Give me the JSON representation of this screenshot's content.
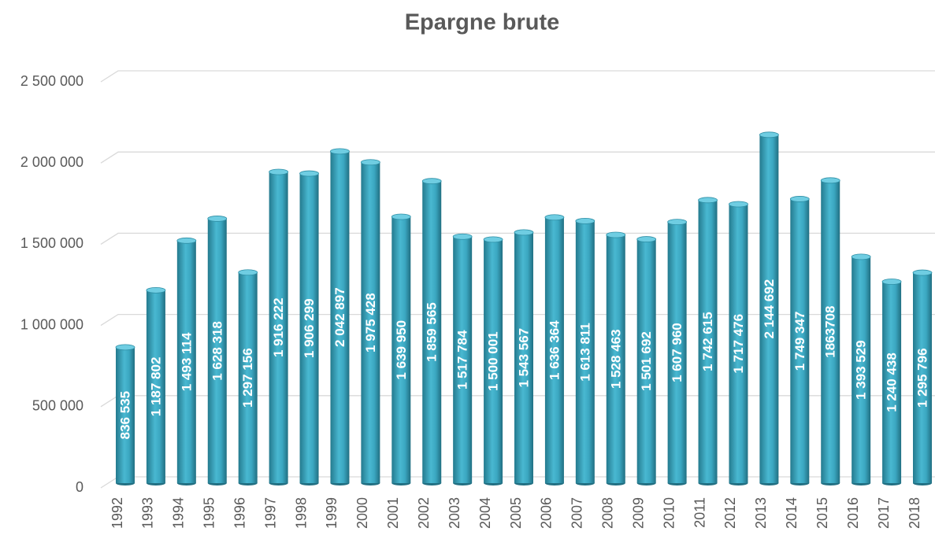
{
  "chart_data": {
    "type": "bar",
    "title": "Epargne brute",
    "categories": [
      "1992",
      "1993",
      "1994",
      "1995",
      "1996",
      "1997",
      "1998",
      "1999",
      "2000",
      "2001",
      "2002",
      "2003",
      "2004",
      "2005",
      "2006",
      "2007",
      "2008",
      "2009",
      "2010",
      "2011",
      "2012",
      "2013",
      "2014",
      "2015",
      "2016",
      "2017",
      "2018"
    ],
    "values": [
      836535,
      1187802,
      1493114,
      1628318,
      1297156,
      1916222,
      1906299,
      2042897,
      1975428,
      1639950,
      1859565,
      1517784,
      1500001,
      1543567,
      1636364,
      1613811,
      1528463,
      1501692,
      1607960,
      1742615,
      1717476,
      2144692,
      1749347,
      1863708,
      1393529,
      1240438,
      1295796
    ],
    "value_labels": [
      "836 535",
      "1 187 802",
      "1 493 114",
      "1 628 318",
      "1 297 156",
      "1 916 222",
      "1 906 299",
      "2 042 897",
      "1 975 428",
      "1 639 950",
      "1 859 565",
      "1 517 784",
      "1 500 001",
      "1 543 567",
      "1 636 364",
      "1 613 811",
      "1 528 463",
      "1 501 692",
      "1 607 960",
      "1 742 615",
      "1 717 476",
      "2 144 692",
      "1 749 347",
      "1863708",
      "1 393 529",
      "1 240 438",
      "1 295 796"
    ],
    "color": "#3ba7c1",
    "ylim": [
      0,
      2500000
    ],
    "yticks": [
      0,
      {
        "value": 500000,
        "label": "500 000"
      },
      {
        "value": 1000000,
        "label": "1 000 000"
      },
      {
        "value": 1500000,
        "label": "1 500 000"
      },
      {
        "value": 2000000,
        "label": "2 000 000"
      },
      {
        "value": 2500000,
        "label": "2 500 000"
      }
    ],
    "grid": true
  }
}
